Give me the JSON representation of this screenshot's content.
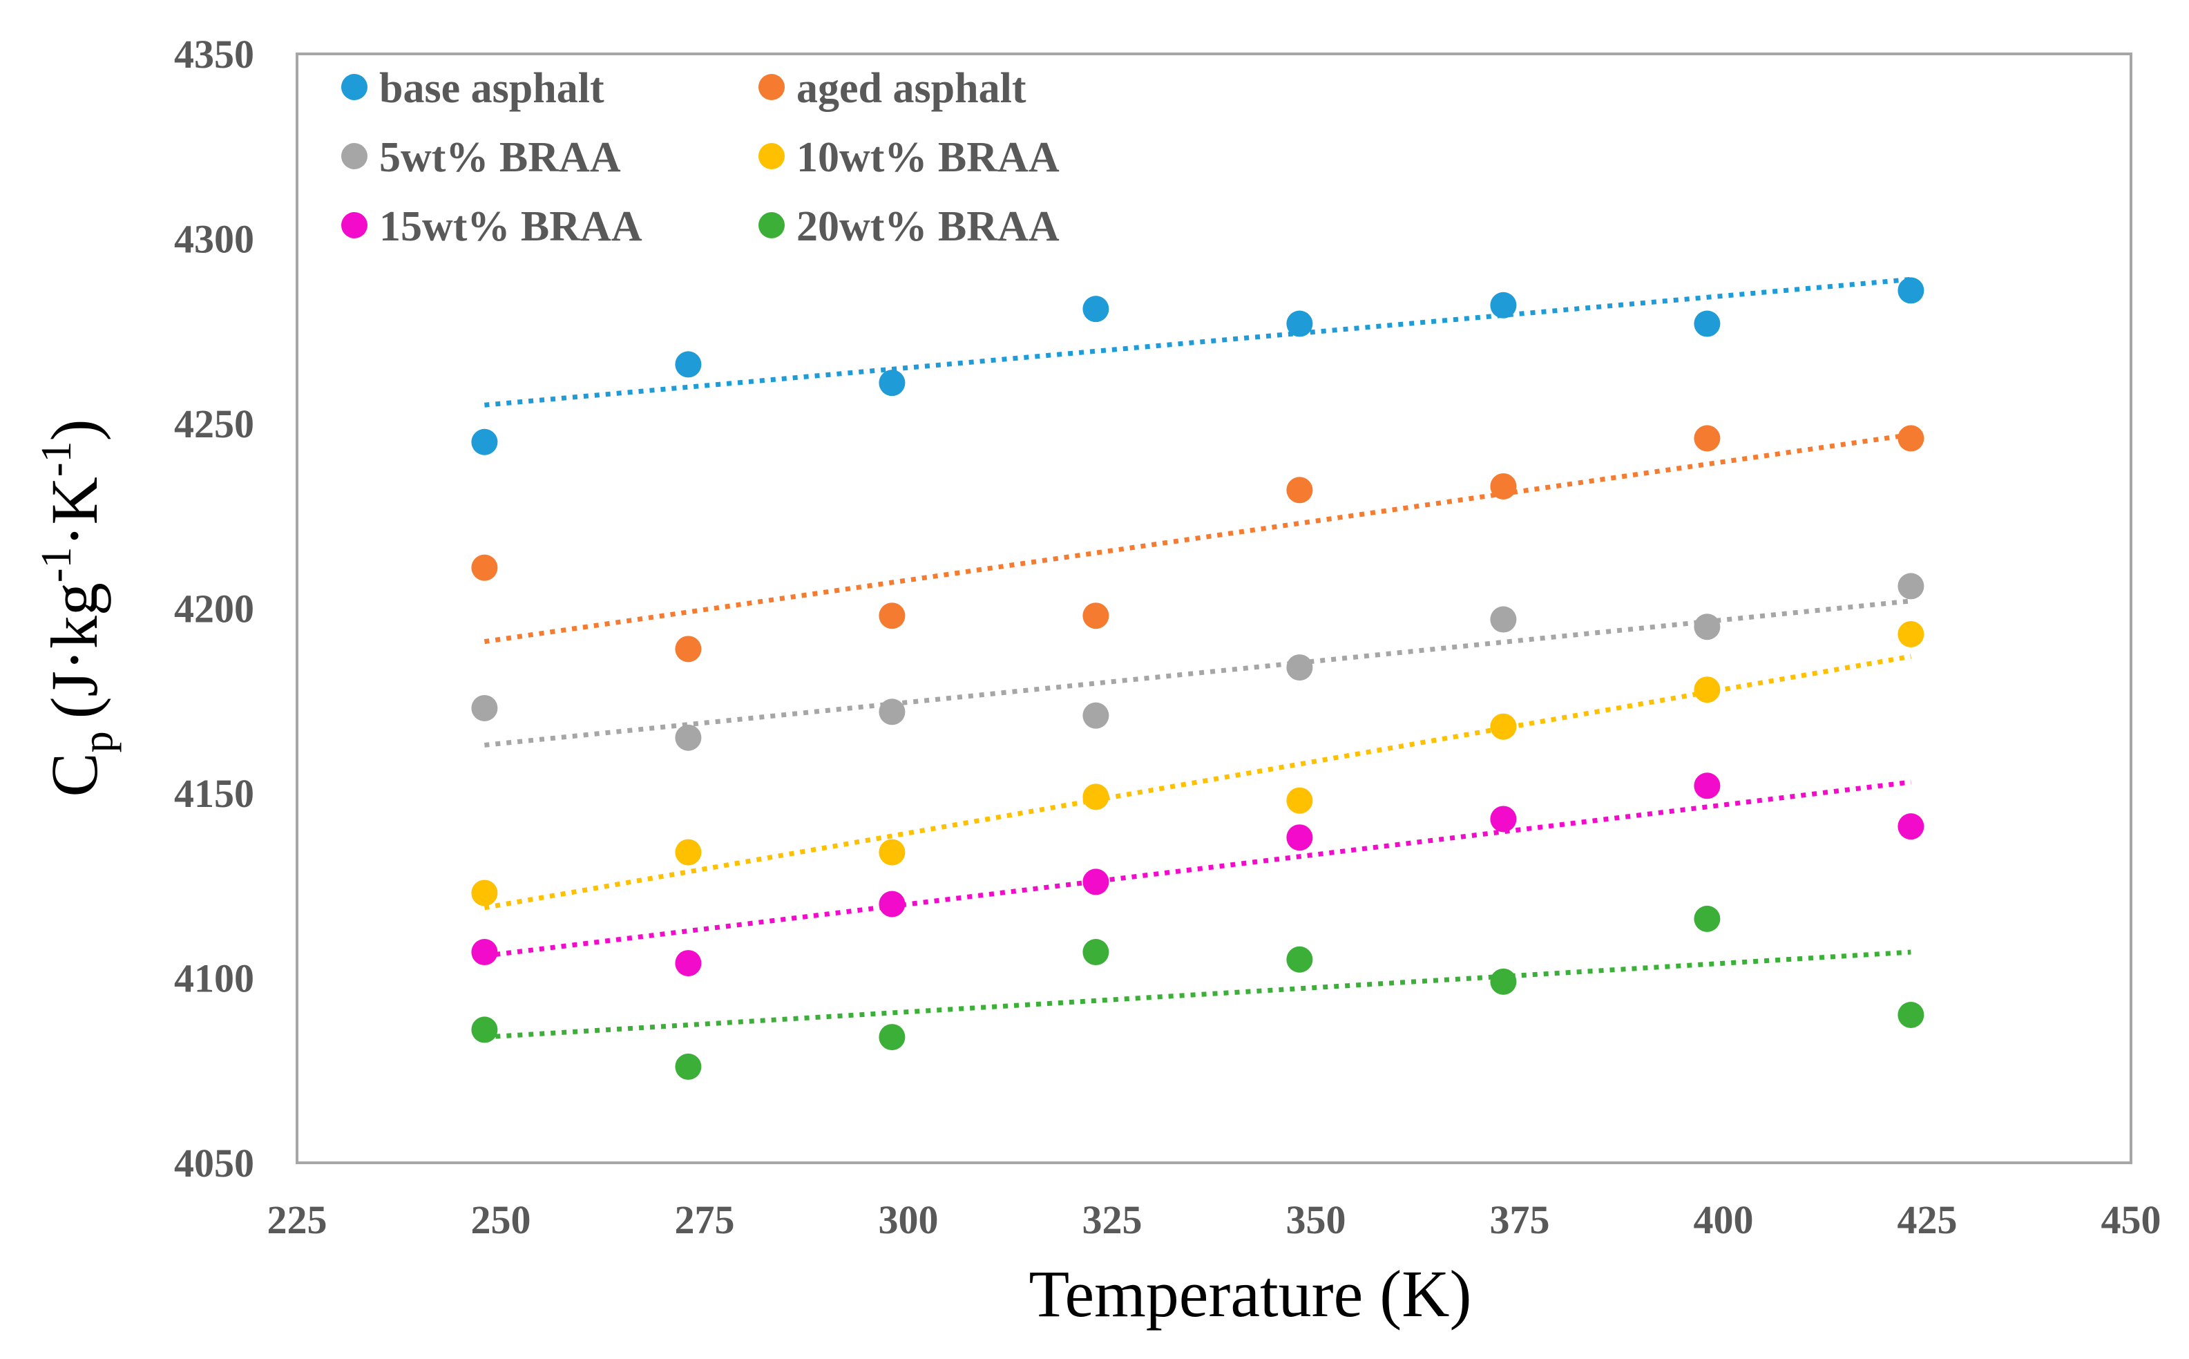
{
  "chart_data": {
    "type": "scatter",
    "title": "",
    "xlabel": "Temperature (K)",
    "ylabel_main": "C",
    "ylabel_sub": "p",
    "ylabel_unit_parts": [
      "(J·kg",
      "-1",
      "·K",
      "-1",
      ")"
    ],
    "xlim": [
      225,
      450
    ],
    "ylim": [
      4050,
      4350
    ],
    "xticks": [
      225,
      250,
      275,
      300,
      325,
      350,
      375,
      400,
      425,
      450
    ],
    "yticks": [
      4050,
      4100,
      4150,
      4200,
      4250,
      4300,
      4350
    ],
    "grid": false,
    "legend_position": "top-left",
    "x": [
      248,
      273,
      298,
      323,
      348,
      373,
      398,
      423
    ],
    "series": [
      {
        "name": "base asphalt",
        "color": "#1F9BD8",
        "values": [
          4245,
          4266,
          4261,
          4281,
          4277,
          4282,
          4277,
          4286
        ],
        "trend": [
          4255,
          4289
        ]
      },
      {
        "name": "aged asphalt",
        "color": "#F47B30",
        "values": [
          4211,
          4189,
          4198,
          4198,
          4232,
          4233,
          4246,
          4246
        ],
        "trend": [
          4191,
          4247
        ]
      },
      {
        "name": "5wt% BRAA",
        "color": "#A6A6A6",
        "values": [
          4173,
          4165,
          4172,
          4171,
          4184,
          4197,
          4195,
          4206
        ],
        "trend": [
          4163,
          4202
        ]
      },
      {
        "name": "10wt% BRAA",
        "color": "#FFC000",
        "values": [
          4123,
          4134,
          4134,
          4149,
          4148,
          4168,
          4178,
          4193
        ],
        "trend": [
          4119,
          4187
        ]
      },
      {
        "name": "15wt% BRAA",
        "color": "#F20BCB",
        "values": [
          4107,
          4104,
          4120,
          4126,
          4138,
          4143,
          4152,
          4141
        ],
        "trend": [
          4106,
          4153
        ]
      },
      {
        "name": "20wt% BRAA",
        "color": "#3CAF38",
        "values": [
          4086,
          4076,
          4084,
          4107,
          4105,
          4099,
          4116,
          4090
        ],
        "trend": [
          4084,
          4107
        ]
      }
    ]
  }
}
